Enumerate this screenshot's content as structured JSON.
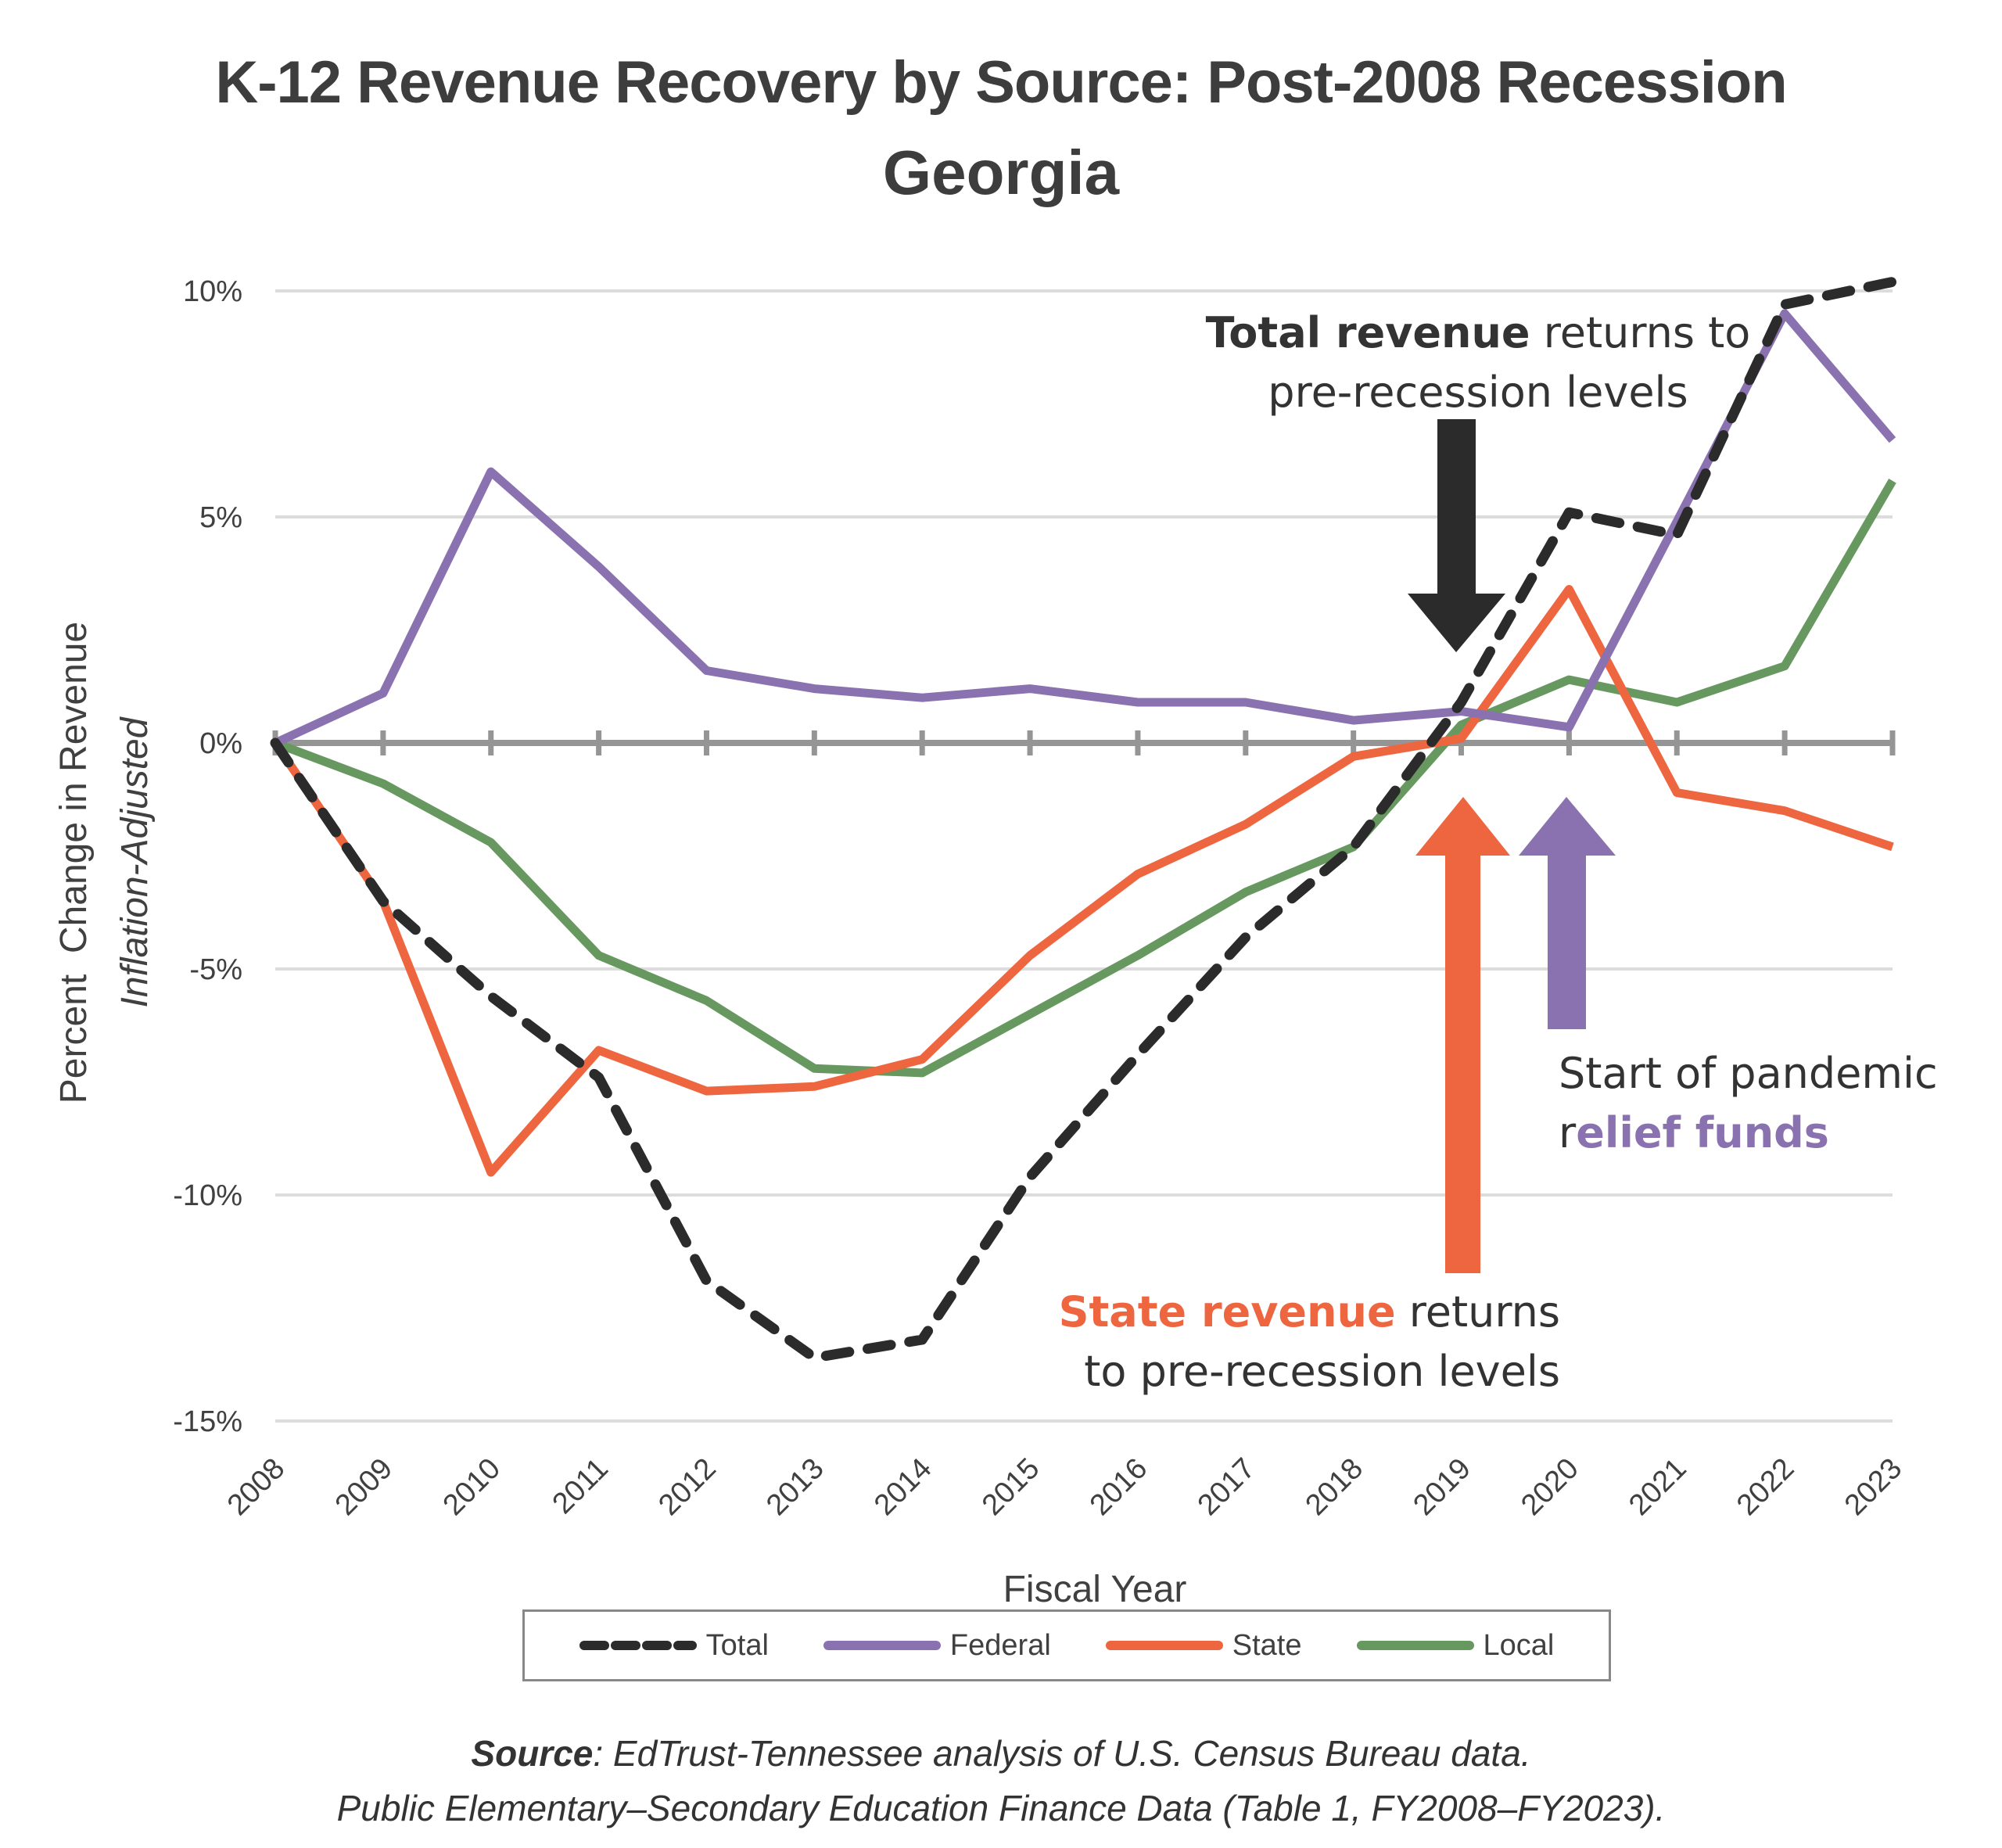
{
  "title": {
    "line1": "K-12 Revenue Recovery by Source: Post-2008 Recession",
    "line2": "Georgia"
  },
  "annotations": {
    "total": {
      "bold": "Total revenue",
      "rest_line1": " returns to",
      "line2": "pre-recession levels",
      "arrow_color": "#2b2b2b",
      "points_to_year": 2019
    },
    "state": {
      "bold": "State revenue",
      "rest_line1": " returns",
      "line2": "to pre-recession levels",
      "color": "#ee6640",
      "points_to_year": 2019
    },
    "relief": {
      "line1": "Start of pandemic",
      "prefix": "r",
      "bold": "elief funds",
      "color": "#8a71af",
      "points_to_year": 2020
    }
  },
  "legend": {
    "items": [
      {
        "label": "Total",
        "color": "#2b2b2b",
        "style": "dashed"
      },
      {
        "label": "Federal",
        "color": "#8a71af",
        "style": "solid"
      },
      {
        "label": "State",
        "color": "#ee6640",
        "style": "solid"
      },
      {
        "label": "Local",
        "color": "#66985f",
        "style": "solid"
      }
    ]
  },
  "source": {
    "label": "Source",
    "line1_rest": ": EdTrust-Tennessee analysis of U.S. Census Bureau data.",
    "line2": "Public Elementary–Secondary Education Finance Data (Table 1, FY2008–FY2023)."
  },
  "chart_data": {
    "type": "line",
    "title": "K-12 Revenue Recovery by Source: Post-2008 Recession — Georgia",
    "xlabel": "Fiscal Year",
    "ylabel": "Percent  Change in Revenue",
    "ylabel_sub": "Inflation-Adjusted",
    "x": [
      "2008",
      "2009",
      "2010",
      "2011",
      "2012",
      "2013",
      "2014",
      "2015",
      "2016",
      "2017",
      "2018",
      "2019",
      "2020",
      "2021",
      "2022",
      "2023"
    ],
    "ylim": [
      -15,
      10
    ],
    "yticks": [
      10,
      5,
      0,
      -5,
      -10,
      -15
    ],
    "ytick_labels": [
      "10%",
      "5%",
      "0%",
      "-5%",
      "-10%",
      "-15%"
    ],
    "grid": true,
    "legend_position": "bottom",
    "series": [
      {
        "name": "Total",
        "color": "#2b2b2b",
        "dashed": true,
        "values": [
          0,
          -3.5,
          -5.6,
          -7.4,
          -11.9,
          -13.6,
          -13.2,
          -9.6,
          -6.9,
          -4.3,
          -2.3,
          0.9,
          5.1,
          4.6,
          9.7,
          10.2
        ]
      },
      {
        "name": "Federal",
        "color": "#8a71af",
        "dashed": false,
        "values": [
          0,
          1.1,
          6.0,
          3.9,
          1.6,
          1.2,
          1.0,
          1.2,
          0.9,
          0.9,
          0.5,
          0.7,
          0.35,
          4.9,
          9.5,
          6.7
        ]
      },
      {
        "name": "State",
        "color": "#ee6640",
        "dashed": false,
        "values": [
          0,
          -3.5,
          -9.5,
          -6.8,
          -7.7,
          -7.6,
          -7.0,
          -4.7,
          -2.9,
          -1.8,
          -0.3,
          0.1,
          3.4,
          -1.1,
          -1.5,
          -2.3
        ]
      },
      {
        "name": "Local",
        "color": "#66985f",
        "dashed": false,
        "values": [
          0,
          -0.9,
          -2.2,
          -4.7,
          -5.7,
          -7.2,
          -7.3,
          -6.0,
          -4.7,
          -3.3,
          -2.3,
          0.4,
          1.4,
          0.9,
          1.7,
          5.8
        ]
      }
    ]
  }
}
